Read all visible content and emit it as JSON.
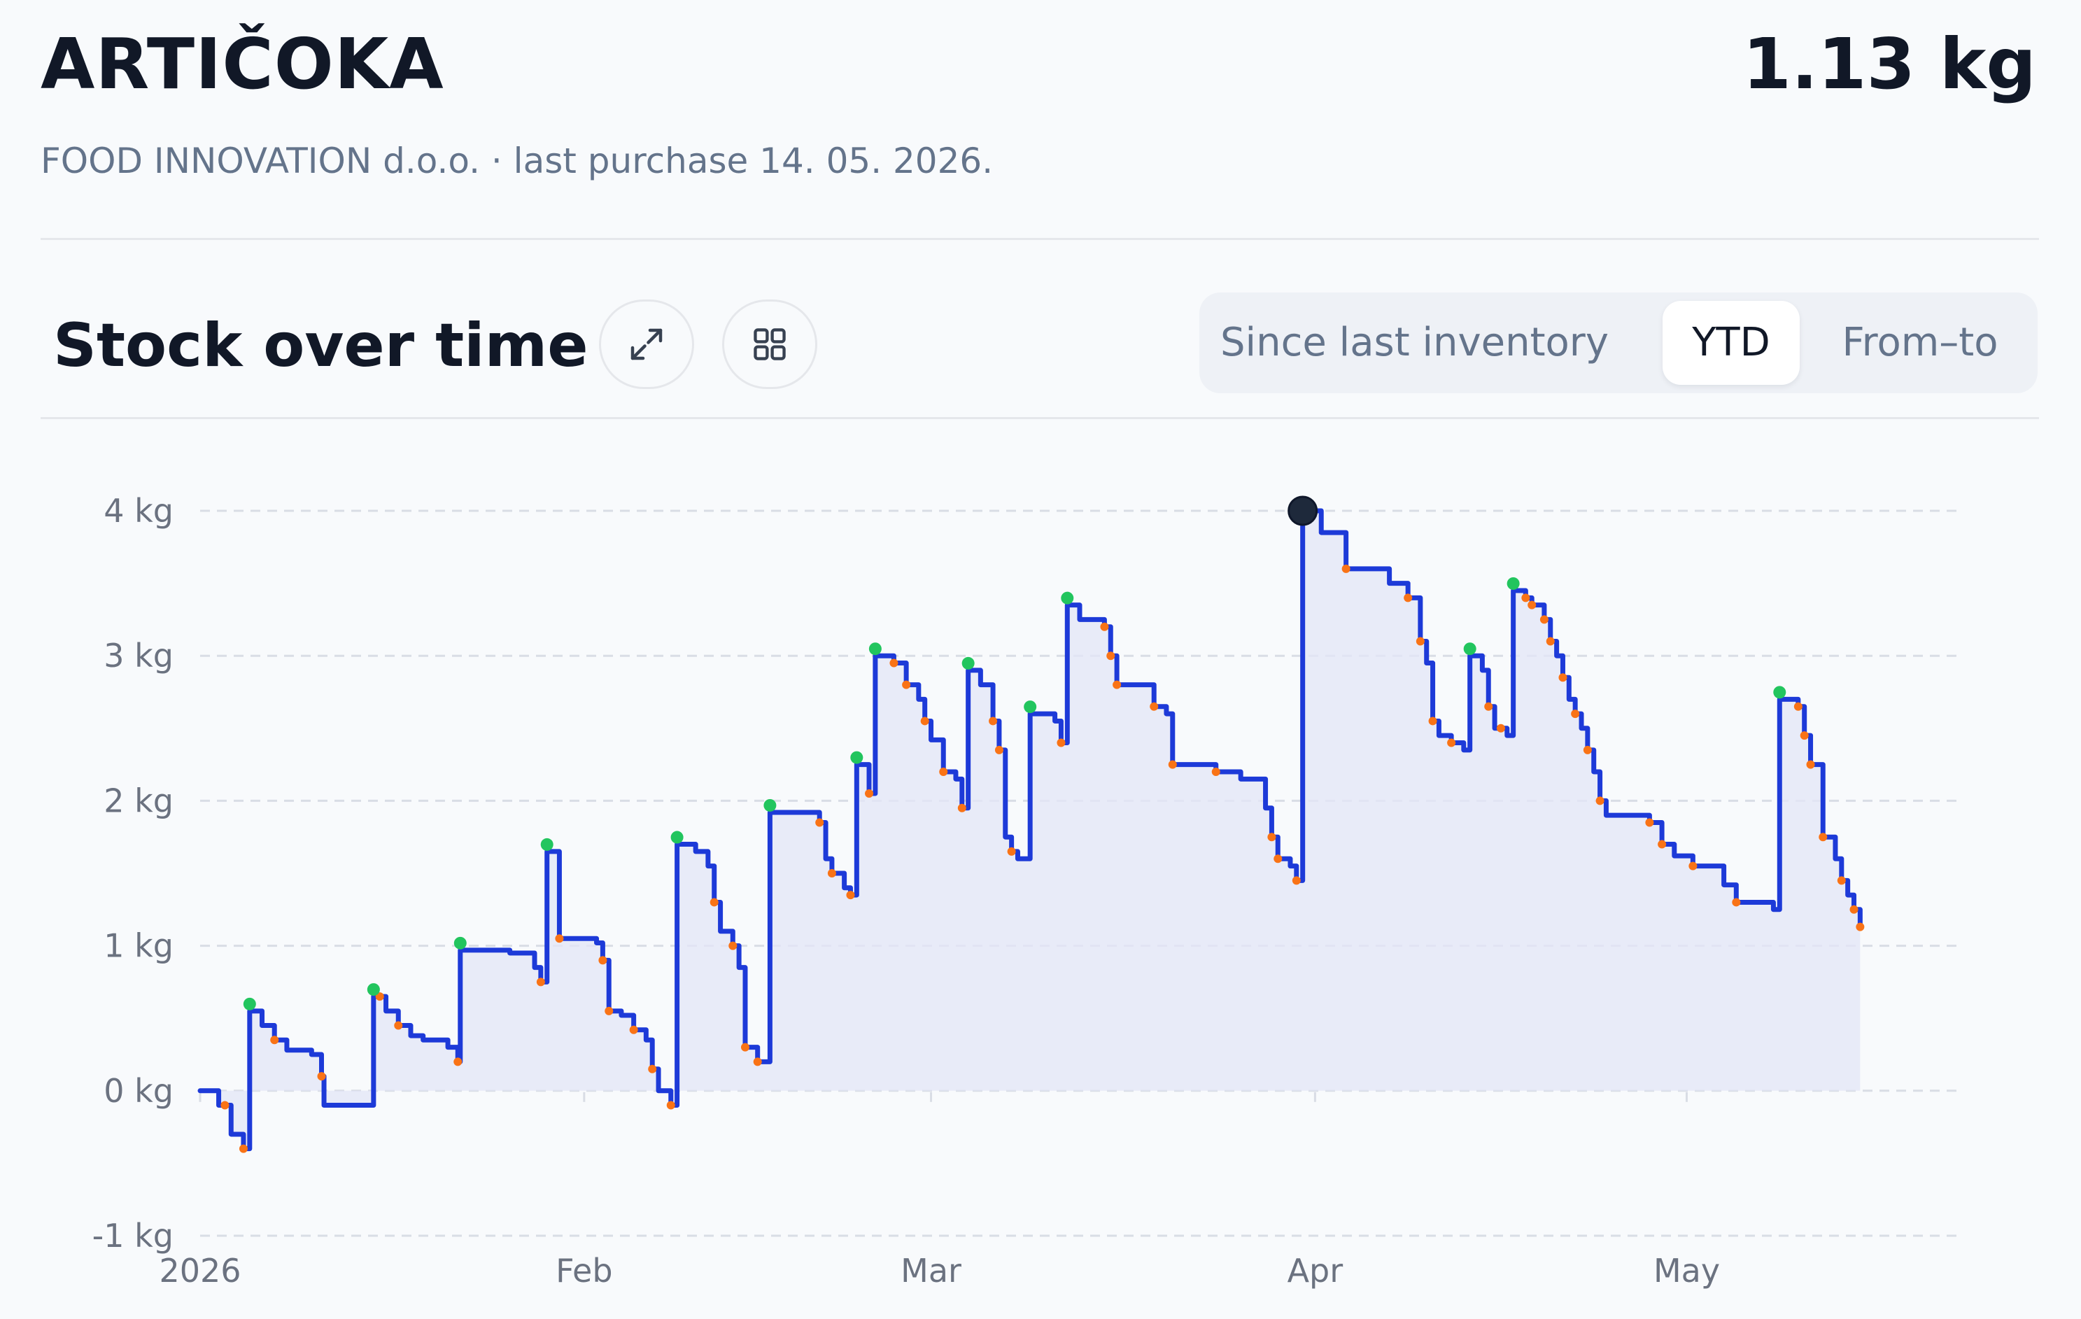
{
  "header": {
    "title": "ARTIČOKA",
    "amount": "1.13 kg",
    "subtitle": "FOOD INNOVATION d.o.o. · last purchase 14. 05. 2026."
  },
  "section": {
    "title": "Stock over time",
    "expand_icon": "expand-arrows-icon",
    "grid_icon": "grid-view-icon"
  },
  "range_tabs": [
    {
      "label": "Since last inventory",
      "active": false
    },
    {
      "label": "YTD",
      "active": true
    },
    {
      "label": "From–to",
      "active": false
    }
  ],
  "colors": {
    "line": "#1d3ad8",
    "fill": "#e3e6f7",
    "purchase": "#22c55e",
    "consumption": "#f97316",
    "grid": "#d9dde5",
    "highlight": "#1e293b"
  },
  "chart_data": {
    "type": "line",
    "step": true,
    "fill": true,
    "ylim": [
      -1,
      4
    ],
    "yticks": [
      "-1 kg",
      "0 kg",
      "1 kg",
      "2 kg",
      "3 kg",
      "4 kg"
    ],
    "xticks": [
      {
        "label": "2026",
        "x": 0
      },
      {
        "label": "Feb",
        "x": 31
      },
      {
        "label": "Mar",
        "x": 59
      },
      {
        "label": "Apr",
        "x": 90
      },
      {
        "label": "May",
        "x": 120
      }
    ],
    "xlim": [
      0,
      142
    ],
    "grid": true,
    "series": [
      {
        "points": [
          [
            0,
            0
          ],
          [
            1.5,
            -0.1
          ],
          [
            2.5,
            -0.3
          ],
          [
            3.5,
            -0.4
          ],
          [
            4,
            0.55
          ],
          [
            5,
            0.45
          ],
          [
            6,
            0.35
          ],
          [
            7,
            0.28
          ],
          [
            9,
            0.25
          ],
          [
            9.8,
            0.1
          ],
          [
            10,
            -0.1
          ],
          [
            13,
            -0.1
          ],
          [
            14,
            0.65
          ],
          [
            15,
            0.55
          ],
          [
            16,
            0.45
          ],
          [
            17,
            0.38
          ],
          [
            18,
            0.35
          ],
          [
            20,
            0.3
          ],
          [
            20.8,
            0.2
          ],
          [
            21,
            0.97
          ],
          [
            25,
            0.95
          ],
          [
            27,
            0.85
          ],
          [
            27.5,
            0.75
          ],
          [
            28,
            1.65
          ],
          [
            29,
            1.05
          ],
          [
            32,
            1.02
          ],
          [
            32.5,
            0.9
          ],
          [
            33,
            0.55
          ],
          [
            34,
            0.52
          ],
          [
            35,
            0.42
          ],
          [
            36,
            0.35
          ],
          [
            36.5,
            0.15
          ],
          [
            37,
            0.0
          ],
          [
            38,
            -0.1
          ],
          [
            38.5,
            1.7
          ],
          [
            40,
            1.65
          ],
          [
            41,
            1.55
          ],
          [
            41.5,
            1.3
          ],
          [
            42,
            1.1
          ],
          [
            43,
            1.0
          ],
          [
            43.5,
            0.85
          ],
          [
            44,
            0.3
          ],
          [
            45,
            0.2
          ],
          [
            46,
            1.92
          ],
          [
            50,
            1.85
          ],
          [
            50.5,
            1.6
          ],
          [
            51,
            1.5
          ],
          [
            52,
            1.4
          ],
          [
            52.5,
            1.35
          ],
          [
            53,
            2.25
          ],
          [
            54,
            2.05
          ],
          [
            54.5,
            3.0
          ],
          [
            56,
            2.95
          ],
          [
            57,
            2.8
          ],
          [
            58,
            2.7
          ],
          [
            58.5,
            2.55
          ],
          [
            59,
            2.42
          ],
          [
            60,
            2.2
          ],
          [
            61,
            2.15
          ],
          [
            61.5,
            1.95
          ],
          [
            62,
            2.9
          ],
          [
            63,
            2.8
          ],
          [
            64,
            2.55
          ],
          [
            64.5,
            2.35
          ],
          [
            65,
            1.75
          ],
          [
            65.5,
            1.65
          ],
          [
            66,
            1.6
          ],
          [
            67,
            2.6
          ],
          [
            69,
            2.55
          ],
          [
            69.5,
            2.4
          ],
          [
            70,
            3.35
          ],
          [
            71,
            3.25
          ],
          [
            73,
            3.2
          ],
          [
            73.5,
            3.0
          ],
          [
            74,
            2.8
          ],
          [
            77,
            2.65
          ],
          [
            78,
            2.6
          ],
          [
            78.5,
            2.25
          ],
          [
            82,
            2.2
          ],
          [
            84,
            2.15
          ],
          [
            86,
            1.95
          ],
          [
            86.5,
            1.75
          ],
          [
            87,
            1.6
          ],
          [
            88,
            1.55
          ],
          [
            88.5,
            1.45
          ],
          [
            89,
            4.0
          ],
          [
            90.5,
            3.85
          ],
          [
            92.5,
            3.6
          ],
          [
            96,
            3.5
          ],
          [
            97.5,
            3.4
          ],
          [
            98.5,
            3.1
          ],
          [
            99,
            2.95
          ],
          [
            99.5,
            2.55
          ],
          [
            100,
            2.45
          ],
          [
            101,
            2.4
          ],
          [
            102,
            2.35
          ],
          [
            102.5,
            3.0
          ],
          [
            103.5,
            2.9
          ],
          [
            104,
            2.65
          ],
          [
            104.5,
            2.5
          ],
          [
            105.5,
            2.45
          ],
          [
            106,
            3.45
          ],
          [
            107,
            3.4
          ],
          [
            107.5,
            3.35
          ],
          [
            108.5,
            3.25
          ],
          [
            109,
            3.1
          ],
          [
            109.5,
            3.0
          ],
          [
            110,
            2.85
          ],
          [
            110.5,
            2.7
          ],
          [
            111,
            2.6
          ],
          [
            111.5,
            2.5
          ],
          [
            112,
            2.35
          ],
          [
            112.5,
            2.2
          ],
          [
            113,
            2.0
          ],
          [
            113.5,
            1.9
          ],
          [
            117,
            1.85
          ],
          [
            118,
            1.7
          ],
          [
            119,
            1.62
          ],
          [
            120.5,
            1.55
          ],
          [
            123,
            1.42
          ],
          [
            124,
            1.3
          ],
          [
            127,
            1.25
          ],
          [
            127.5,
            2.7
          ],
          [
            129,
            2.65
          ],
          [
            129.5,
            2.45
          ],
          [
            130,
            2.25
          ],
          [
            131,
            1.75
          ],
          [
            132,
            1.6
          ],
          [
            132.5,
            1.45
          ],
          [
            133,
            1.35
          ],
          [
            133.5,
            1.25
          ],
          [
            134,
            1.13
          ]
        ]
      }
    ],
    "purchase_days": [
      4,
      14,
      21,
      28,
      38.5,
      46,
      53,
      54.5,
      62,
      67,
      70,
      102.5,
      106,
      127.5
    ],
    "consumption_days": [
      2,
      3.5,
      6,
      9.8,
      14.5,
      16,
      20.8,
      27.5,
      29,
      32.5,
      33,
      35,
      36.5,
      38,
      41.5,
      43,
      44,
      45,
      50,
      51,
      52.5,
      54,
      56,
      57,
      58.5,
      60,
      61.5,
      64,
      64.5,
      65.5,
      69.5,
      73,
      73.5,
      74,
      77,
      78.5,
      82,
      86.5,
      87,
      88.5,
      92.5,
      97.5,
      98.5,
      99.5,
      101,
      104,
      105,
      107,
      107.5,
      108.5,
      109,
      110,
      111,
      112,
      113,
      117,
      118,
      120.5,
      124,
      129,
      129.5,
      130,
      131,
      132.5,
      133.5,
      134
    ],
    "highlight_point": {
      "x": 89,
      "y": 4.0
    }
  }
}
